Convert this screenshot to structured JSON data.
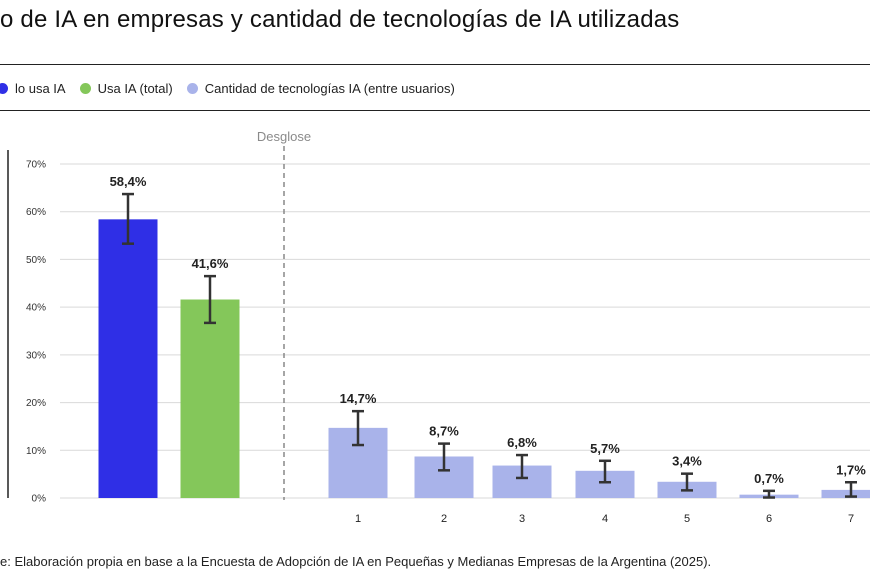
{
  "title": "o de IA en empresas y cantidad de tecnologías de IA utilizadas",
  "legend": [
    {
      "label": "lo usa IA",
      "color": "#2f2fe6"
    },
    {
      "label": "Usa IA (total)",
      "color": "#84c75a"
    },
    {
      "label": "Cantidad de tecnologías IA (entre usuarios)",
      "color": "#a9b3ea"
    }
  ],
  "source": "e: Elaboración propia en base a la Encuesta de Adopción de IA en Pequeñas y Medianas Empresas de la Argentina (2025).",
  "chart_data": {
    "type": "bar",
    "ylim": [
      0,
      70
    ],
    "yticks": [
      0,
      10,
      20,
      30,
      40,
      50,
      60,
      70
    ],
    "ytick_labels": [
      "0%",
      "10%",
      "20%",
      "30%",
      "40%",
      "50%",
      "60%",
      "70%"
    ],
    "grid": true,
    "divider_label": "Desglose",
    "bars": [
      {
        "category": "",
        "value": 58.4,
        "label": "58,4%",
        "err_low": 53.3,
        "err_high": 63.7,
        "color": "#2f2fe6"
      },
      {
        "category": "",
        "value": 41.6,
        "label": "41,6%",
        "err_low": 36.7,
        "err_high": 46.5,
        "color": "#84c75a"
      },
      {
        "category": "1",
        "value": 14.7,
        "label": "14,7%",
        "err_low": 11.1,
        "err_high": 18.2,
        "color": "#a9b3ea"
      },
      {
        "category": "2",
        "value": 8.7,
        "label": "8,7%",
        "err_low": 5.8,
        "err_high": 11.4,
        "color": "#a9b3ea"
      },
      {
        "category": "3",
        "value": 6.8,
        "label": "6,8%",
        "err_low": 4.2,
        "err_high": 9.0,
        "color": "#a9b3ea"
      },
      {
        "category": "4",
        "value": 5.7,
        "label": "5,7%",
        "err_low": 3.3,
        "err_high": 7.8,
        "color": "#a9b3ea"
      },
      {
        "category": "5",
        "value": 3.4,
        "label": "3,4%",
        "err_low": 1.6,
        "err_high": 5.1,
        "color": "#a9b3ea"
      },
      {
        "category": "6",
        "value": 0.7,
        "label": "0,7%",
        "err_low": 0.1,
        "err_high": 1.5,
        "color": "#a9b3ea"
      },
      {
        "category": "7",
        "value": 1.7,
        "label": "1,7%",
        "err_low": 0.3,
        "err_high": 3.3,
        "color": "#a9b3ea"
      }
    ]
  }
}
